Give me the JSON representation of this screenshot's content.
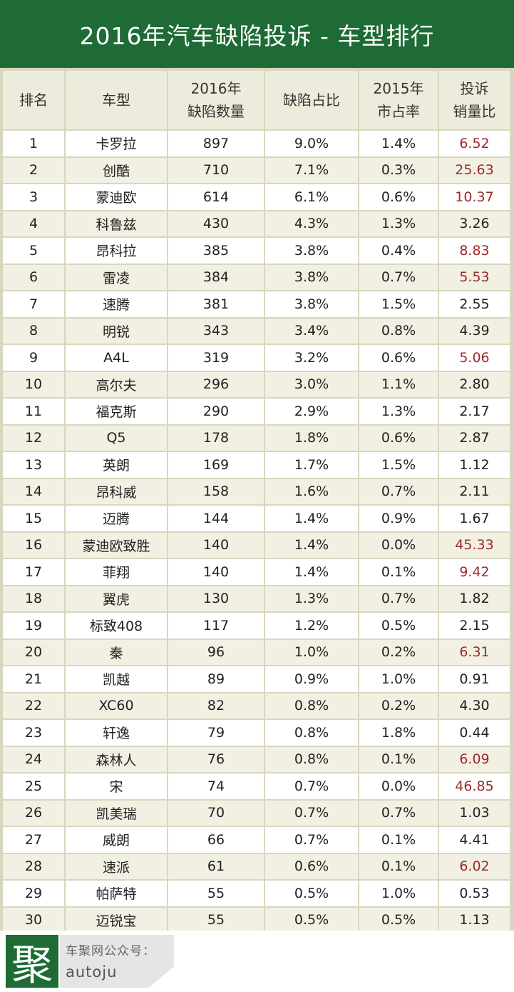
{
  "title": "2016年汽车缺陷投诉 - 车型排行",
  "headers": [
    {
      "line1": "排名",
      "line2": ""
    },
    {
      "line1": "车型",
      "line2": ""
    },
    {
      "line1": "2016年",
      "line2": "缺陷数量"
    },
    {
      "line1": "缺陷占比",
      "line2": ""
    },
    {
      "line1": "2015年",
      "line2": "市占率"
    },
    {
      "line1": "投诉",
      "line2": "销量比"
    }
  ],
  "rows": [
    {
      "rank": "1",
      "model": "卡罗拉",
      "count": "897",
      "share": "9.0%",
      "market": "1.4%",
      "ratio": "6.52",
      "highlight": true
    },
    {
      "rank": "2",
      "model": "创酷",
      "count": "710",
      "share": "7.1%",
      "market": "0.3%",
      "ratio": "25.63",
      "highlight": true
    },
    {
      "rank": "3",
      "model": "蒙迪欧",
      "count": "614",
      "share": "6.1%",
      "market": "0.6%",
      "ratio": "10.37",
      "highlight": true
    },
    {
      "rank": "4",
      "model": "科鲁兹",
      "count": "430",
      "share": "4.3%",
      "market": "1.3%",
      "ratio": "3.26",
      "highlight": false
    },
    {
      "rank": "5",
      "model": "昂科拉",
      "count": "385",
      "share": "3.8%",
      "market": "0.4%",
      "ratio": "8.83",
      "highlight": true
    },
    {
      "rank": "6",
      "model": "雷凌",
      "count": "384",
      "share": "3.8%",
      "market": "0.7%",
      "ratio": "5.53",
      "highlight": true
    },
    {
      "rank": "7",
      "model": "速腾",
      "count": "381",
      "share": "3.8%",
      "market": "1.5%",
      "ratio": "2.55",
      "highlight": false
    },
    {
      "rank": "8",
      "model": "明锐",
      "count": "343",
      "share": "3.4%",
      "market": "0.8%",
      "ratio": "4.39",
      "highlight": false
    },
    {
      "rank": "9",
      "model": "A4L",
      "count": "319",
      "share": "3.2%",
      "market": "0.6%",
      "ratio": "5.06",
      "highlight": true
    },
    {
      "rank": "10",
      "model": "高尔夫",
      "count": "296",
      "share": "3.0%",
      "market": "1.1%",
      "ratio": "2.80",
      "highlight": false
    },
    {
      "rank": "11",
      "model": "福克斯",
      "count": "290",
      "share": "2.9%",
      "market": "1.3%",
      "ratio": "2.17",
      "highlight": false
    },
    {
      "rank": "12",
      "model": "Q5",
      "count": "178",
      "share": "1.8%",
      "market": "0.6%",
      "ratio": "2.87",
      "highlight": false
    },
    {
      "rank": "13",
      "model": "英朗",
      "count": "169",
      "share": "1.7%",
      "market": "1.5%",
      "ratio": "1.12",
      "highlight": false
    },
    {
      "rank": "14",
      "model": "昂科威",
      "count": "158",
      "share": "1.6%",
      "market": "0.7%",
      "ratio": "2.11",
      "highlight": false
    },
    {
      "rank": "15",
      "model": "迈腾",
      "count": "144",
      "share": "1.4%",
      "market": "0.9%",
      "ratio": "1.67",
      "highlight": false
    },
    {
      "rank": "16",
      "model": "蒙迪欧致胜",
      "count": "140",
      "share": "1.4%",
      "market": "0.0%",
      "ratio": "45.33",
      "highlight": true
    },
    {
      "rank": "17",
      "model": "菲翔",
      "count": "140",
      "share": "1.4%",
      "market": "0.1%",
      "ratio": "9.42",
      "highlight": true
    },
    {
      "rank": "18",
      "model": "翼虎",
      "count": "130",
      "share": "1.3%",
      "market": "0.7%",
      "ratio": "1.82",
      "highlight": false
    },
    {
      "rank": "19",
      "model": "标致408",
      "count": "117",
      "share": "1.2%",
      "market": "0.5%",
      "ratio": "2.15",
      "highlight": false
    },
    {
      "rank": "20",
      "model": "秦",
      "count": "96",
      "share": "1.0%",
      "market": "0.2%",
      "ratio": "6.31",
      "highlight": true
    },
    {
      "rank": "21",
      "model": "凯越",
      "count": "89",
      "share": "0.9%",
      "market": "1.0%",
      "ratio": "0.91",
      "highlight": false
    },
    {
      "rank": "22",
      "model": "XC60",
      "count": "82",
      "share": "0.8%",
      "market": "0.2%",
      "ratio": "4.30",
      "highlight": false
    },
    {
      "rank": "23",
      "model": "轩逸",
      "count": "79",
      "share": "0.8%",
      "market": "1.8%",
      "ratio": "0.44",
      "highlight": false
    },
    {
      "rank": "24",
      "model": "森林人",
      "count": "76",
      "share": "0.8%",
      "market": "0.1%",
      "ratio": "6.09",
      "highlight": true
    },
    {
      "rank": "25",
      "model": "宋",
      "count": "74",
      "share": "0.7%",
      "market": "0.0%",
      "ratio": "46.85",
      "highlight": true
    },
    {
      "rank": "26",
      "model": "凯美瑞",
      "count": "70",
      "share": "0.7%",
      "market": "0.7%",
      "ratio": "1.03",
      "highlight": false
    },
    {
      "rank": "27",
      "model": "威朗",
      "count": "66",
      "share": "0.7%",
      "market": "0.1%",
      "ratio": "4.41",
      "highlight": false
    },
    {
      "rank": "28",
      "model": "速派",
      "count": "61",
      "share": "0.6%",
      "market": "0.1%",
      "ratio": "6.02",
      "highlight": true
    },
    {
      "rank": "29",
      "model": "帕萨特",
      "count": "55",
      "share": "0.5%",
      "market": "1.0%",
      "ratio": "0.53",
      "highlight": false
    },
    {
      "rank": "30",
      "model": "迈锐宝",
      "count": "55",
      "share": "0.5%",
      "market": "0.5%",
      "ratio": "1.13",
      "highlight": false
    }
  ],
  "colors": {
    "brand_green": "#1e6b35",
    "highlight_red": "#9b2a2a"
  },
  "footer": {
    "logo_char": "聚",
    "line1": "车聚网公众号：",
    "line2": "autoju"
  }
}
